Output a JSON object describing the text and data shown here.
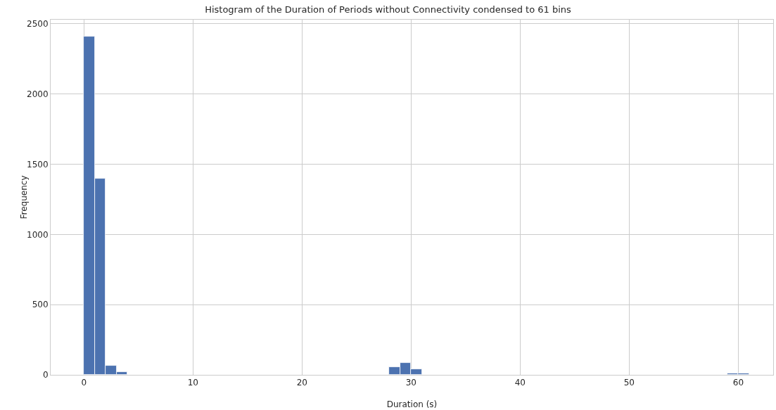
{
  "chart_data": {
    "type": "histogram",
    "title": "Histogram of the Duration of Periods without Connectivity condensed to 61 bins",
    "xlabel": "Duration (s)",
    "ylabel": "Frequency",
    "color": "#4c72b0",
    "bins": [
      0,
      1,
      2,
      3,
      4,
      5,
      6,
      7,
      8,
      9,
      10,
      11,
      12,
      13,
      14,
      15,
      16,
      17,
      18,
      19,
      20,
      21,
      22,
      23,
      24,
      25,
      26,
      27,
      28,
      29,
      30,
      31,
      32,
      33,
      34,
      35,
      36,
      37,
      38,
      39,
      40,
      41,
      42,
      43,
      44,
      45,
      46,
      47,
      48,
      49,
      50,
      51,
      52,
      53,
      54,
      55,
      56,
      57,
      58,
      59,
      60,
      61
    ],
    "values": [
      2410,
      1400,
      67,
      22,
      0,
      0,
      0,
      0,
      0,
      0,
      0,
      0,
      0,
      0,
      0,
      0,
      0,
      0,
      0,
      0,
      0,
      0,
      0,
      0,
      0,
      0,
      0,
      0,
      56,
      84,
      39,
      0,
      0,
      0,
      0,
      0,
      0,
      0,
      0,
      0,
      0,
      0,
      0,
      0,
      0,
      0,
      0,
      0,
      0,
      0,
      0,
      0,
      0,
      0,
      0,
      0,
      0,
      0,
      0,
      8,
      8
    ],
    "xlim": [
      -3.05,
      63.2
    ],
    "xticks": [
      0,
      10,
      20,
      30,
      40,
      50,
      60
    ],
    "ylim": [
      0,
      2530
    ],
    "yticks": [
      0,
      500,
      1000,
      1500,
      2000,
      2500
    ],
    "grid": true
  }
}
